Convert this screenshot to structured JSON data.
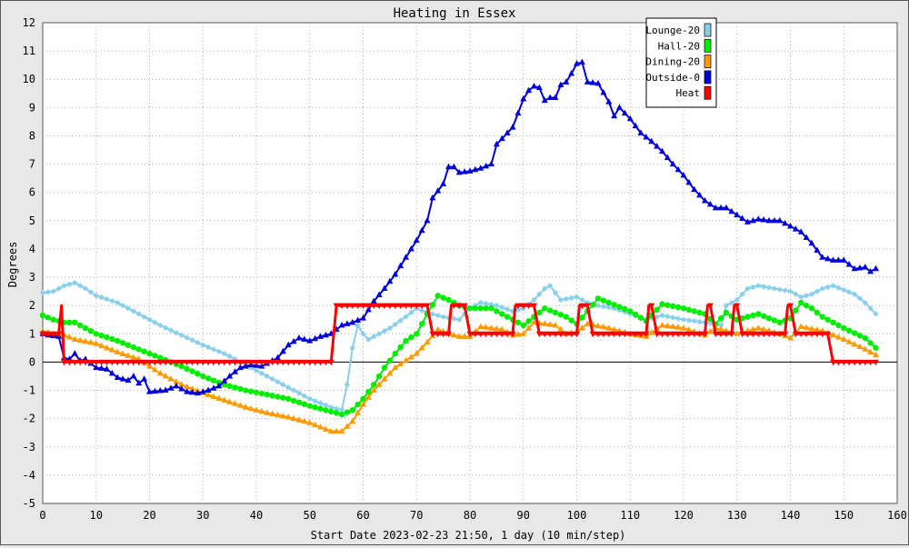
{
  "chart_data": {
    "type": "line",
    "title": "Heating in Essex",
    "xlabel": "Start Date 2023-02-23 21:50, 1 day (10 min/step)",
    "ylabel": "Degrees",
    "xlim": [
      0,
      160
    ],
    "ylim": [
      -5,
      12
    ],
    "xticks": [
      0,
      10,
      20,
      30,
      40,
      50,
      60,
      70,
      80,
      90,
      100,
      110,
      120,
      130,
      140,
      150,
      160
    ],
    "yticks": [
      -5,
      -4,
      -3,
      -2,
      -1,
      0,
      1,
      2,
      3,
      4,
      5,
      6,
      7,
      8,
      9,
      10,
      11,
      12
    ],
    "grid": true,
    "legend_position": "top-right",
    "series": [
      {
        "name": "Lounge-20",
        "color": "#87ceeb",
        "marker": "star",
        "points": [
          [
            0,
            2.45
          ],
          [
            2,
            2.5
          ],
          [
            4,
            2.7
          ],
          [
            6,
            2.8
          ],
          [
            8,
            2.6
          ],
          [
            10,
            2.35
          ],
          [
            14,
            2.1
          ],
          [
            18,
            1.7
          ],
          [
            22,
            1.3
          ],
          [
            26,
            0.95
          ],
          [
            30,
            0.6
          ],
          [
            34,
            0.3
          ],
          [
            38,
            -0.1
          ],
          [
            42,
            -0.5
          ],
          [
            46,
            -0.9
          ],
          [
            50,
            -1.3
          ],
          [
            54,
            -1.6
          ],
          [
            56,
            -1.7
          ],
          [
            57,
            -0.8
          ],
          [
            58,
            0.5
          ],
          [
            59,
            1.3
          ],
          [
            60,
            1.0
          ],
          [
            61,
            0.8
          ],
          [
            63,
            1.0
          ],
          [
            65,
            1.2
          ],
          [
            68,
            1.6
          ],
          [
            70,
            1.9
          ],
          [
            72,
            1.75
          ],
          [
            75,
            1.6
          ],
          [
            78,
            1.5
          ],
          [
            80,
            1.9
          ],
          [
            82,
            2.1
          ],
          [
            85,
            2.0
          ],
          [
            88,
            1.8
          ],
          [
            90,
            1.9
          ],
          [
            92,
            2.2
          ],
          [
            94,
            2.6
          ],
          [
            95,
            2.7
          ],
          [
            97,
            2.2
          ],
          [
            100,
            2.3
          ],
          [
            102,
            2.1
          ],
          [
            104,
            2.0
          ],
          [
            107,
            1.9
          ],
          [
            110,
            1.7
          ],
          [
            113,
            1.5
          ],
          [
            116,
            1.65
          ],
          [
            120,
            1.5
          ],
          [
            124,
            1.4
          ],
          [
            127,
            1.3
          ],
          [
            128,
            2.0
          ],
          [
            130,
            2.2
          ],
          [
            132,
            2.6
          ],
          [
            134,
            2.7
          ],
          [
            137,
            2.6
          ],
          [
            140,
            2.5
          ],
          [
            142,
            2.3
          ],
          [
            144,
            2.4
          ],
          [
            146,
            2.6
          ],
          [
            148,
            2.7
          ],
          [
            152,
            2.4
          ],
          [
            154,
            2.1
          ],
          [
            156,
            1.7
          ]
        ]
      },
      {
        "name": "Hall-20",
        "color": "#00ee00",
        "marker": "circle",
        "points": [
          [
            0,
            1.65
          ],
          [
            2,
            1.5
          ],
          [
            4,
            1.4
          ],
          [
            6,
            1.4
          ],
          [
            8,
            1.2
          ],
          [
            10,
            1.0
          ],
          [
            14,
            0.75
          ],
          [
            18,
            0.45
          ],
          [
            22,
            0.15
          ],
          [
            26,
            -0.15
          ],
          [
            30,
            -0.5
          ],
          [
            34,
            -0.8
          ],
          [
            38,
            -1.0
          ],
          [
            42,
            -1.15
          ],
          [
            46,
            -1.3
          ],
          [
            50,
            -1.55
          ],
          [
            54,
            -1.75
          ],
          [
            56,
            -1.85
          ],
          [
            58,
            -1.7
          ],
          [
            60,
            -1.3
          ],
          [
            62,
            -0.8
          ],
          [
            64,
            -0.2
          ],
          [
            66,
            0.3
          ],
          [
            68,
            0.75
          ],
          [
            70,
            1.0
          ],
          [
            72,
            1.7
          ],
          [
            74,
            2.35
          ],
          [
            76,
            2.2
          ],
          [
            78,
            2.0
          ],
          [
            80,
            1.9
          ],
          [
            84,
            1.9
          ],
          [
            88,
            1.5
          ],
          [
            90,
            1.3
          ],
          [
            92,
            1.6
          ],
          [
            94,
            1.9
          ],
          [
            98,
            1.6
          ],
          [
            100,
            1.35
          ],
          [
            102,
            1.8
          ],
          [
            104,
            2.25
          ],
          [
            106,
            2.1
          ],
          [
            110,
            1.8
          ],
          [
            113,
            1.45
          ],
          [
            116,
            2.05
          ],
          [
            120,
            1.9
          ],
          [
            124,
            1.7
          ],
          [
            126,
            1.35
          ],
          [
            128,
            1.75
          ],
          [
            130,
            1.5
          ],
          [
            134,
            1.7
          ],
          [
            138,
            1.4
          ],
          [
            140,
            1.55
          ],
          [
            142,
            2.1
          ],
          [
            144,
            1.9
          ],
          [
            146,
            1.6
          ],
          [
            150,
            1.2
          ],
          [
            154,
            0.85
          ],
          [
            156,
            0.5
          ]
        ]
      },
      {
        "name": "Dining-20",
        "color": "#ff9900",
        "marker": "triangle",
        "points": [
          [
            0,
            1.1
          ],
          [
            2,
            1.0
          ],
          [
            4,
            0.95
          ],
          [
            6,
            0.8
          ],
          [
            10,
            0.65
          ],
          [
            14,
            0.35
          ],
          [
            18,
            0.1
          ],
          [
            22,
            -0.4
          ],
          [
            26,
            -0.8
          ],
          [
            30,
            -1.1
          ],
          [
            34,
            -1.35
          ],
          [
            38,
            -1.6
          ],
          [
            42,
            -1.8
          ],
          [
            46,
            -1.95
          ],
          [
            50,
            -2.15
          ],
          [
            54,
            -2.45
          ],
          [
            56,
            -2.45
          ],
          [
            58,
            -2.1
          ],
          [
            60,
            -1.5
          ],
          [
            62,
            -1.0
          ],
          [
            64,
            -0.6
          ],
          [
            66,
            -0.2
          ],
          [
            70,
            0.3
          ],
          [
            72,
            0.7
          ],
          [
            74,
            1.15
          ],
          [
            76,
            1.0
          ],
          [
            78,
            0.9
          ],
          [
            80,
            0.9
          ],
          [
            82,
            1.25
          ],
          [
            86,
            1.15
          ],
          [
            88,
            0.95
          ],
          [
            90,
            1.0
          ],
          [
            92,
            1.4
          ],
          [
            96,
            1.3
          ],
          [
            98,
            1.0
          ],
          [
            100,
            1.05
          ],
          [
            102,
            1.35
          ],
          [
            106,
            1.2
          ],
          [
            110,
            1.0
          ],
          [
            113,
            0.9
          ],
          [
            116,
            1.3
          ],
          [
            120,
            1.2
          ],
          [
            124,
            0.95
          ],
          [
            126,
            1.2
          ],
          [
            130,
            1.0
          ],
          [
            134,
            1.2
          ],
          [
            138,
            1.0
          ],
          [
            140,
            0.85
          ],
          [
            142,
            1.25
          ],
          [
            146,
            1.1
          ],
          [
            150,
            0.8
          ],
          [
            154,
            0.45
          ],
          [
            156,
            0.25
          ]
        ]
      },
      {
        "name": "Outside-0",
        "color": "#0000dd",
        "marker": "triangle",
        "points": [
          [
            0,
            1.0
          ],
          [
            1,
            0.95
          ],
          [
            3,
            0.9
          ],
          [
            4,
            0.15
          ],
          [
            5,
            0.1
          ],
          [
            6,
            0.3
          ],
          [
            7,
            0.05
          ],
          [
            8,
            0.1
          ],
          [
            10,
            -0.2
          ],
          [
            12,
            -0.25
          ],
          [
            14,
            -0.55
          ],
          [
            16,
            -0.65
          ],
          [
            17,
            -0.5
          ],
          [
            18,
            -0.75
          ],
          [
            19,
            -0.6
          ],
          [
            20,
            -1.05
          ],
          [
            23,
            -1.0
          ],
          [
            25,
            -0.85
          ],
          [
            27,
            -1.05
          ],
          [
            29,
            -1.1
          ],
          [
            31,
            -1.0
          ],
          [
            33,
            -0.85
          ],
          [
            35,
            -0.5
          ],
          [
            37,
            -0.2
          ],
          [
            39,
            -0.1
          ],
          [
            41,
            -0.15
          ],
          [
            42,
            -0.05
          ],
          [
            44,
            0.15
          ],
          [
            46,
            0.6
          ],
          [
            48,
            0.85
          ],
          [
            50,
            0.75
          ],
          [
            52,
            0.9
          ],
          [
            54,
            1.0
          ],
          [
            56,
            1.3
          ],
          [
            58,
            1.4
          ],
          [
            60,
            1.55
          ],
          [
            62,
            2.15
          ],
          [
            64,
            2.6
          ],
          [
            66,
            3.1
          ],
          [
            68,
            3.7
          ],
          [
            70,
            4.3
          ],
          [
            72,
            5.0
          ],
          [
            73,
            5.8
          ],
          [
            75,
            6.3
          ],
          [
            76,
            6.9
          ],
          [
            77,
            6.9
          ],
          [
            78,
            6.7
          ],
          [
            80,
            6.75
          ],
          [
            82,
            6.85
          ],
          [
            84,
            7.0
          ],
          [
            85,
            7.7
          ],
          [
            86,
            7.9
          ],
          [
            88,
            8.3
          ],
          [
            89,
            8.8
          ],
          [
            90,
            9.3
          ],
          [
            91,
            9.6
          ],
          [
            92,
            9.75
          ],
          [
            93,
            9.7
          ],
          [
            94,
            9.25
          ],
          [
            95,
            9.35
          ],
          [
            96,
            9.35
          ],
          [
            97,
            9.8
          ],
          [
            98,
            9.9
          ],
          [
            99,
            10.2
          ],
          [
            100,
            10.55
          ],
          [
            101,
            10.6
          ],
          [
            102,
            9.9
          ],
          [
            104,
            9.85
          ],
          [
            106,
            9.2
          ],
          [
            107,
            8.7
          ],
          [
            108,
            9.0
          ],
          [
            110,
            8.6
          ],
          [
            112,
            8.1
          ],
          [
            114,
            7.8
          ],
          [
            116,
            7.45
          ],
          [
            118,
            7.0
          ],
          [
            120,
            6.6
          ],
          [
            122,
            6.1
          ],
          [
            124,
            5.7
          ],
          [
            126,
            5.45
          ],
          [
            128,
            5.45
          ],
          [
            130,
            5.2
          ],
          [
            132,
            4.95
          ],
          [
            134,
            5.05
          ],
          [
            136,
            5.0
          ],
          [
            138,
            5.0
          ],
          [
            140,
            4.8
          ],
          [
            142,
            4.6
          ],
          [
            144,
            4.2
          ],
          [
            146,
            3.7
          ],
          [
            148,
            3.6
          ],
          [
            150,
            3.6
          ],
          [
            152,
            3.3
          ],
          [
            154,
            3.35
          ],
          [
            155,
            3.2
          ],
          [
            156,
            3.3
          ]
        ]
      },
      {
        "name": "Heat",
        "color": "#ff0000",
        "marker": "triangle-down",
        "points": [
          [
            0,
            1
          ],
          [
            3,
            1
          ],
          [
            3.5,
            2
          ],
          [
            4,
            0
          ],
          [
            54,
            0
          ],
          [
            55,
            2
          ],
          [
            72,
            2
          ],
          [
            73,
            1
          ],
          [
            76,
            1
          ],
          [
            76.5,
            2
          ],
          [
            79,
            2
          ],
          [
            80,
            1
          ],
          [
            88,
            1
          ],
          [
            88.5,
            2
          ],
          [
            92,
            2
          ],
          [
            93,
            1
          ],
          [
            100,
            1
          ],
          [
            100.5,
            2
          ],
          [
            102,
            2
          ],
          [
            103,
            1
          ],
          [
            113,
            1
          ],
          [
            113.5,
            2
          ],
          [
            114,
            2
          ],
          [
            115,
            1
          ],
          [
            124,
            1
          ],
          [
            124.5,
            2
          ],
          [
            125,
            2
          ],
          [
            126,
            1
          ],
          [
            129,
            1
          ],
          [
            129.5,
            2
          ],
          [
            130,
            2
          ],
          [
            131,
            1
          ],
          [
            139,
            1
          ],
          [
            139.5,
            2
          ],
          [
            140,
            2
          ],
          [
            141,
            1
          ],
          [
            147,
            1
          ],
          [
            148,
            0
          ],
          [
            156,
            0
          ]
        ]
      }
    ]
  }
}
